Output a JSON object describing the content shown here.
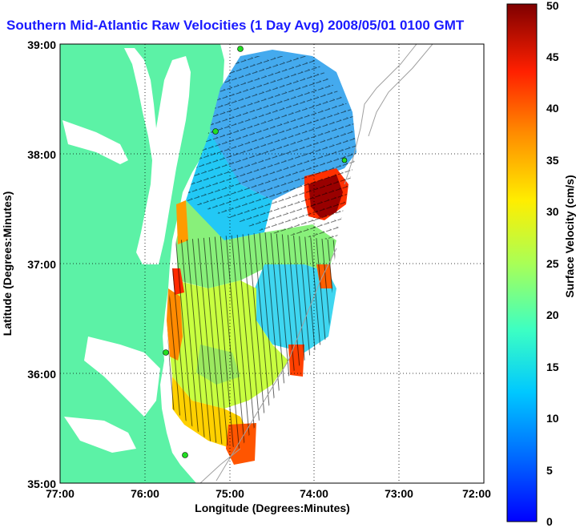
{
  "title": "Southern Mid-Atlantic Raw Velocities (1 Day Avg) 2008/05/01 0100 GMT",
  "xlabel": "Longitude (Degrees:Minutes)",
  "ylabel": "Latitude (Degrees:Minutes)",
  "x_ticks": [
    "77:00",
    "76:00",
    "75:00",
    "74:00",
    "73:00",
    "72:00"
  ],
  "y_ticks": [
    "39:00",
    "38:00",
    "37:00",
    "36:00",
    "35:00"
  ],
  "colorbar": {
    "label": "Surface Velocity (cm/s)",
    "ticks": [
      "0",
      "5",
      "10",
      "15",
      "20",
      "25",
      "30",
      "35",
      "40",
      "45",
      "50"
    ],
    "range": [
      0,
      50
    ]
  },
  "colors": {
    "land": "#5cf2a6",
    "water": "#ffffff",
    "title": "#1a1aff",
    "station": "#22dd22"
  }
}
